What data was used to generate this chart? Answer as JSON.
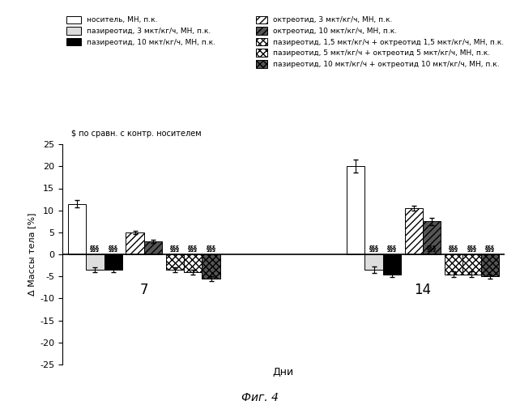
{
  "title": "Фиг. 4",
  "xlabel": "Дни",
  "ylabel": "Δ Массы тела [%]",
  "ylim": [
    -25,
    25
  ],
  "yticks": [
    -25,
    -20,
    -15,
    -10,
    -5,
    0,
    5,
    10,
    15,
    20,
    25
  ],
  "annotation": "$ по сравн. с контр. носителем",
  "day7": {
    "bars": [
      11.5,
      -3.5,
      -3.5,
      5.0,
      3.0,
      -3.5,
      -4.0,
      -5.5
    ],
    "errors": [
      0.8,
      0.5,
      0.5,
      0.4,
      0.4,
      0.5,
      0.5,
      0.5
    ],
    "sig": [
      false,
      true,
      true,
      false,
      false,
      true,
      true,
      true
    ]
  },
  "day14": {
    "bars": [
      20.0,
      -3.5,
      -4.5,
      10.5,
      7.5,
      -4.5,
      -4.5,
      -5.0
    ],
    "errors": [
      1.5,
      0.7,
      0.7,
      0.6,
      0.8,
      0.6,
      0.6,
      0.5
    ],
    "sig": [
      false,
      true,
      true,
      false,
      true,
      true,
      true,
      true
    ]
  },
  "bar_styles": [
    {
      "facecolor": "white",
      "edgecolor": "black",
      "hatch": ""
    },
    {
      "facecolor": "#dddddd",
      "edgecolor": "black",
      "hatch": ""
    },
    {
      "facecolor": "black",
      "edgecolor": "black",
      "hatch": ""
    },
    {
      "facecolor": "white",
      "edgecolor": "black",
      "hatch": "////"
    },
    {
      "facecolor": "#555555",
      "edgecolor": "black",
      "hatch": "////"
    },
    {
      "facecolor": "white",
      "edgecolor": "black",
      "hatch": "xxxx"
    },
    {
      "facecolor": "white",
      "edgecolor": "black",
      "hatch": "xxxx"
    },
    {
      "facecolor": "#555555",
      "edgecolor": "black",
      "hatch": "xxxx"
    }
  ],
  "legend_left": [
    {
      "label": "носитель, МН, п.к.",
      "facecolor": "white",
      "edgecolor": "black",
      "hatch": ""
    },
    {
      "label": "пазиреотид, 3 мкт/кг/ч, МН, п.к.",
      "facecolor": "#dddddd",
      "edgecolor": "black",
      "hatch": ""
    },
    {
      "label": "пазиреотид, 10 мкт/кг/ч, МН, п.к.",
      "facecolor": "black",
      "edgecolor": "black",
      "hatch": ""
    }
  ],
  "legend_right": [
    {
      "label": "октреотид, 3 мкт/кг/ч, МН, п.к.",
      "facecolor": "white",
      "edgecolor": "black",
      "hatch": "////"
    },
    {
      "label": "октреотид, 10 мкт/кг/ч, МН, п.к.",
      "facecolor": "#555555",
      "edgecolor": "black",
      "hatch": "////"
    },
    {
      "label": "пазиреотид, 1,5 мкт/кг/ч + октреотид 1,5 мкт/кг/ч, МН, п.к.",
      "facecolor": "white",
      "edgecolor": "black",
      "hatch": "xxxx"
    },
    {
      "label": "пазиреотид, 5 мкт/кг/ч + октреотид 5 мкт/кг/ч, МН, п.к.",
      "facecolor": "white",
      "edgecolor": "black",
      "hatch": "xxxx"
    },
    {
      "label": "пазиреотид, 10 мкт/кг/ч + октреотид 10 мкт/кг/ч, МН, п.к.",
      "facecolor": "#555555",
      "edgecolor": "black",
      "hatch": "xxxx"
    }
  ]
}
